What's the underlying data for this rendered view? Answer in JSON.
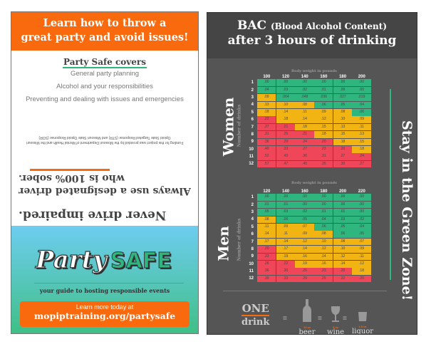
{
  "flyer": {
    "headline_line1": "Learn how to throw a",
    "headline_line2": "great party and avoid issues!",
    "covers_title": "Party Safe covers",
    "covers_items": [
      "General party planning",
      "Alcohol and your responsibilities",
      "Preventing and dealing with issues and emergencies"
    ],
    "funding": "Funding for this project was provided by the Missouri Department of Mental Health and the Missouri Opioid State Targeted Response (STR) and Missouri State Opioid Response (SOR)",
    "slogan_1": "Never drive impaired.",
    "slogan_2": "Always use a designated driver who is 100% sober.",
    "logo_party": "Party",
    "logo_safe": "SAFE",
    "tagline": "your guide to hosting responsible events",
    "cta_line1": "Learn more today at",
    "cta_url": "mopiptraining.org/partysafe",
    "colors": {
      "orange": "#f96a0f",
      "green": "#2fb57e"
    }
  },
  "bac": {
    "title_bac": "BAC",
    "title_paren": "(Blood Alcohol Content)",
    "title_line2": "after 3 hours of drinking",
    "side_text": "Stay in the Green Zone!",
    "zone_colors": {
      "G": "#2fb57e",
      "Y": "#f2b412",
      "R": "#f0465a"
    },
    "women": {
      "label": "Women",
      "weight_label": "Body weight in pounds",
      "drinks_label": "Number of drinks",
      "weights": [
        "100",
        "120",
        "140",
        "160",
        "180",
        "200"
      ],
      "rows": [
        {
          "n": "1",
          "v": [
            ".00",
            ".00",
            ".00",
            ".00",
            ".00",
            ".00"
          ],
          "z": "GGGGGG"
        },
        {
          "n": "2",
          "v": [
            ".04",
            ".03",
            ".02",
            ".01",
            ".00",
            ".00"
          ],
          "z": "GGGGGG"
        },
        {
          "n": "3",
          "v": [
            ".09",
            ".064",
            ".048",
            ".036",
            ".027",
            ".019"
          ],
          "z": "YGGGGG"
        },
        {
          "n": "4",
          "v": [
            ".13",
            ".10",
            ".08",
            ".06",
            ".05",
            ".04"
          ],
          "z": "YYYGGG"
        },
        {
          "n": "5",
          "v": [
            ".18",
            ".14",
            ".11",
            ".09",
            ".08",
            ".06"
          ],
          "z": "YYYYYG"
        },
        {
          "n": "6",
          "v": [
            ".22",
            ".18",
            ".14",
            ".12",
            ".10",
            ".09"
          ],
          "z": "RYYYYY"
        },
        {
          "n": "7",
          "v": [
            ".27",
            ".21",
            ".18",
            ".15",
            ".13",
            ".11"
          ],
          "z": "RRYYYY"
        },
        {
          "n": "8",
          "v": [
            ".31",
            ".25",
            ".21",
            ".18",
            ".15",
            ".13"
          ],
          "z": "RRRYYY"
        },
        {
          "n": "9",
          "v": [
            ".36",
            ".29",
            ".24",
            ".20",
            ".18",
            ".15"
          ],
          "z": "RRRRYY"
        },
        {
          "n": "10",
          "v": [
            ".40",
            ".33",
            ".27",
            ".23",
            ".20",
            ".18"
          ],
          "z": "RRRRRY"
        },
        {
          "n": "11",
          "v": [
            ".52",
            ".43",
            ".36",
            ".31",
            ".27",
            ".24"
          ],
          "z": "RRRRRR"
        },
        {
          "n": "12",
          "v": [
            ".57",
            ".47",
            ".40",
            ".35",
            ".30",
            ".27"
          ],
          "z": "RRRRRR"
        }
      ]
    },
    "men": {
      "label": "Men",
      "weight_label": "Body weight in pounds",
      "drinks_label": "Number of drinks",
      "weights": [
        "120",
        "140",
        "160",
        "180",
        "200",
        "220"
      ],
      "rows": [
        {
          "n": "1",
          "v": [
            ".00",
            ".00",
            ".00",
            ".00",
            ".00",
            ".00"
          ],
          "z": "GGGGGG"
        },
        {
          "n": "2",
          "v": [
            ".01",
            ".01",
            ".00",
            ".00",
            ".00",
            ".00"
          ],
          "z": "GGGGGG"
        },
        {
          "n": "3",
          "v": [
            ".05",
            ".03",
            ".02",
            ".01",
            ".01",
            ".00"
          ],
          "z": "GGGGGG"
        },
        {
          "n": "4",
          "v": [
            ".08",
            ".06",
            ".05",
            ".04",
            ".03",
            ".02"
          ],
          "z": "YGGGGG"
        },
        {
          "n": "5",
          "v": [
            ".11",
            ".09",
            ".07",
            ".06",
            ".05",
            ".04"
          ],
          "z": "YYYGGG"
        },
        {
          "n": "6",
          "v": [
            ".14",
            ".11",
            ".09",
            ".08",
            ".06",
            ".05"
          ],
          "z": "YYYYGG"
        },
        {
          "n": "7",
          "v": [
            ".17",
            ".14",
            ".12",
            ".10",
            ".08",
            ".07"
          ],
          "z": "YYYYYY"
        },
        {
          "n": "8",
          "v": [
            ".20",
            ".17",
            ".14",
            ".12",
            ".10",
            ".09"
          ],
          "z": "RYYYYY"
        },
        {
          "n": "9",
          "v": [
            ".23",
            ".19",
            ".16",
            ".14",
            ".12",
            ".11"
          ],
          "z": "RYYYYY"
        },
        {
          "n": "10",
          "v": [
            ".26",
            ".22",
            ".19",
            ".16",
            ".14",
            ".12"
          ],
          "z": "RRYYYY"
        },
        {
          "n": "11",
          "v": [
            ".36",
            ".30",
            ".26",
            ".23",
            ".20",
            ".18"
          ],
          "z": "RRRRRY"
        },
        {
          "n": "12",
          "v": [
            ".39",
            ".33",
            ".29",
            ".25",
            ".22",
            ".20"
          ],
          "z": "RRRRRR"
        }
      ]
    },
    "one_drink": {
      "one": "ONE",
      "drink": "drink",
      "eq": "=",
      "items": [
        {
          "oz": "12 oz",
          "name": "beer"
        },
        {
          "oz": "5 oz",
          "name": "wine"
        },
        {
          "oz": "1.5 oz",
          "name": "liquor"
        }
      ]
    }
  }
}
